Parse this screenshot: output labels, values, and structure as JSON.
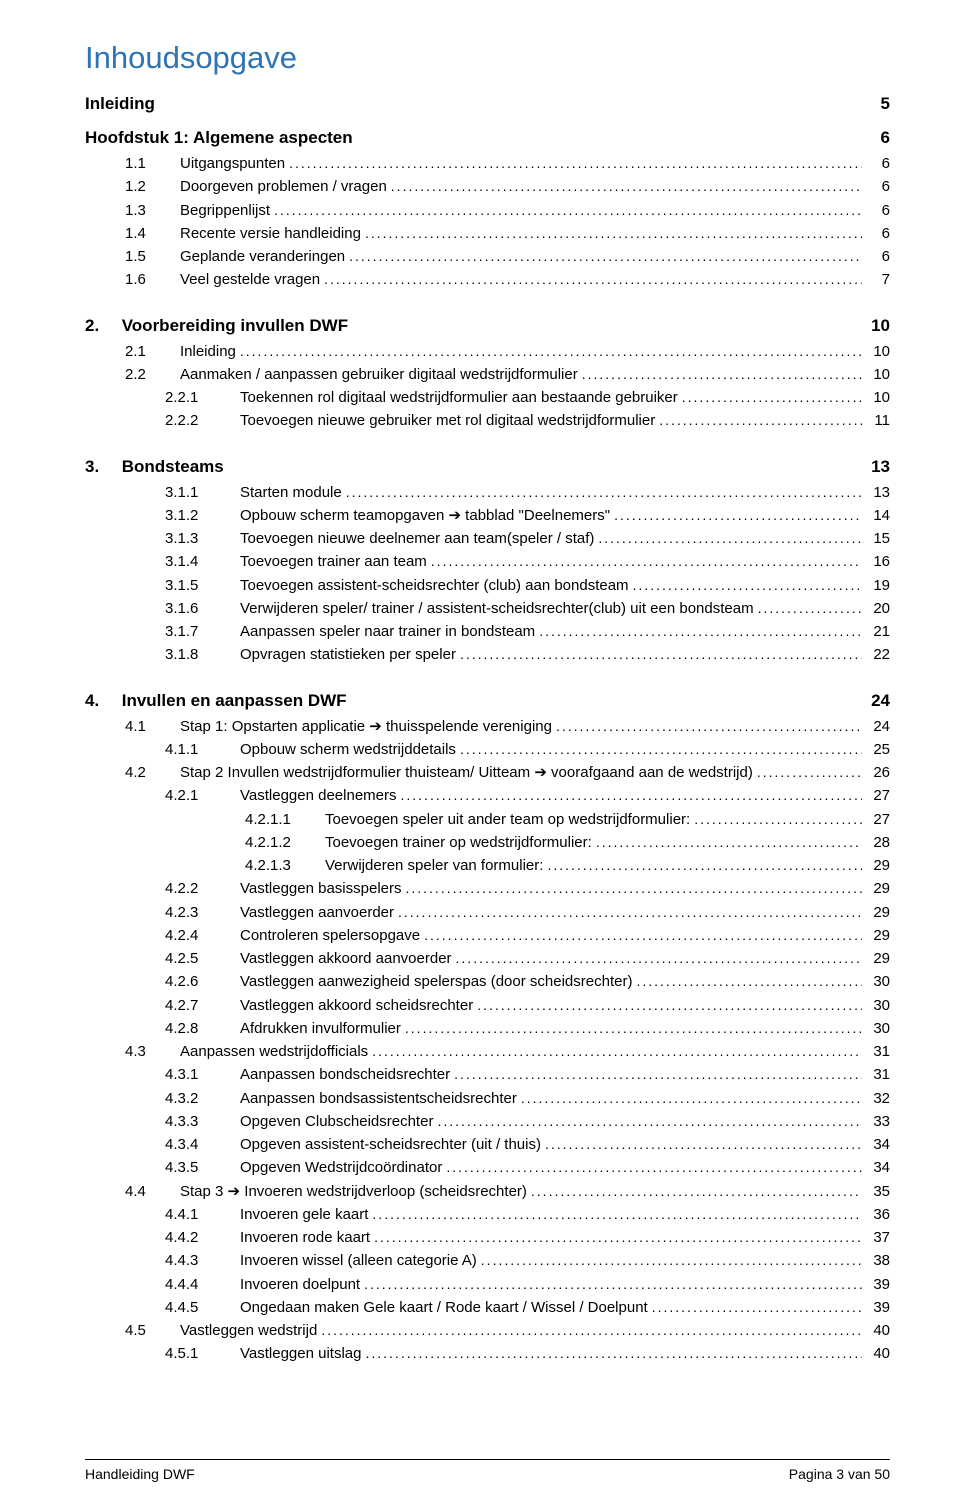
{
  "colors": {
    "title": "#2e74b5",
    "text": "#000000",
    "background": "#ffffff",
    "footer_border": "#000000"
  },
  "typography": {
    "title_fontsize": 31,
    "h1_fontsize": 17,
    "body_fontsize": 15,
    "footer_fontsize": 14,
    "font_family": "Arial"
  },
  "title": "Inhoudsopgave",
  "sections": [
    {
      "type": "h1",
      "label": "Inleiding",
      "page": "5"
    },
    {
      "type": "h1",
      "label": "Hoofdstuk 1: Algemene aspecten",
      "page": "6"
    },
    {
      "type": "entry",
      "indent": 1,
      "num": "1.1",
      "label": "Uitgangspunten",
      "page": "6"
    },
    {
      "type": "entry",
      "indent": 1,
      "num": "1.2",
      "label": "Doorgeven problemen / vragen",
      "page": "6"
    },
    {
      "type": "entry",
      "indent": 1,
      "num": "1.3",
      "label": "Begrippenlijst",
      "page": "6"
    },
    {
      "type": "entry",
      "indent": 1,
      "num": "1.4",
      "label": "Recente versie handleiding",
      "page": "6"
    },
    {
      "type": "entry",
      "indent": 1,
      "num": "1.5",
      "label": "Geplande veranderingen",
      "page": "6"
    },
    {
      "type": "entry",
      "indent": 1,
      "num": "1.6",
      "label": "Veel gestelde vragen",
      "page": "7"
    },
    {
      "type": "h1num",
      "num": "2.",
      "label": "Voorbereiding invullen DWF",
      "page": "10"
    },
    {
      "type": "entry",
      "indent": 1,
      "num": "2.1",
      "label": "Inleiding",
      "page": "10"
    },
    {
      "type": "entry",
      "indent": 1,
      "num": "2.2",
      "label": "Aanmaken / aanpassen gebruiker digitaal wedstrijdformulier",
      "page": "10"
    },
    {
      "type": "entry",
      "indent": 2,
      "num": "2.2.1",
      "label": "Toekennen rol digitaal wedstrijdformulier aan bestaande gebruiker",
      "page": "10"
    },
    {
      "type": "entry",
      "indent": 2,
      "num": "2.2.2",
      "label": "Toevoegen nieuwe gebruiker met rol digitaal wedstrijdformulier",
      "page": "11"
    },
    {
      "type": "h1num",
      "num": "3.",
      "label": "Bondsteams",
      "page": "13"
    },
    {
      "type": "entry",
      "indent": 2,
      "num": "3.1.1",
      "label": "Starten module",
      "page": "13"
    },
    {
      "type": "entry",
      "indent": 2,
      "num": "3.1.2",
      "label": "Opbouw scherm teamopgaven ➔ tabblad \"Deelnemers\"",
      "page": "14"
    },
    {
      "type": "entry",
      "indent": 2,
      "num": "3.1.3",
      "label": "Toevoegen nieuwe deelnemer aan team(speler / staf)",
      "page": "15"
    },
    {
      "type": "entry",
      "indent": 2,
      "num": "3.1.4",
      "label": "Toevoegen trainer aan team",
      "page": "16"
    },
    {
      "type": "entry",
      "indent": 2,
      "num": "3.1.5",
      "label": "Toevoegen assistent-scheidsrechter (club) aan bondsteam",
      "page": "19"
    },
    {
      "type": "entry",
      "indent": 2,
      "num": "3.1.6",
      "label": "Verwijderen speler/ trainer / assistent-scheidsrechter(club) uit een bondsteam",
      "page": "20"
    },
    {
      "type": "entry",
      "indent": 2,
      "num": "3.1.7",
      "label": "Aanpassen speler naar trainer in bondsteam",
      "page": "21"
    },
    {
      "type": "entry",
      "indent": 2,
      "num": "3.1.8",
      "label": "Opvragen statistieken per speler",
      "page": "22"
    },
    {
      "type": "h1num",
      "num": "4.",
      "label": "Invullen en aanpassen DWF",
      "page": "24"
    },
    {
      "type": "entry",
      "indent": 1,
      "num": "4.1",
      "label": "Stap 1: Opstarten applicatie ➔ thuisspelende vereniging",
      "page": "24"
    },
    {
      "type": "entry",
      "indent": 2,
      "num": "4.1.1",
      "label": "Opbouw scherm wedstrijddetails",
      "page": "25"
    },
    {
      "type": "entry",
      "indent": 1,
      "num": "4.2",
      "label": "Stap 2 Invullen wedstrijdformulier thuisteam/ Uitteam ➔ voorafgaand aan de wedstrijd)",
      "page": "26"
    },
    {
      "type": "entry",
      "indent": 2,
      "num": "4.2.1",
      "label": "Vastleggen deelnemers",
      "page": "27"
    },
    {
      "type": "entry",
      "indent": 3,
      "num": "4.2.1.1",
      "label": "Toevoegen speler uit ander team op wedstrijdformulier:",
      "page": "27"
    },
    {
      "type": "entry",
      "indent": 3,
      "num": "4.2.1.2",
      "label": "Toevoegen trainer op wedstrijdformulier:",
      "page": "28"
    },
    {
      "type": "entry",
      "indent": 3,
      "num": "4.2.1.3",
      "label": "Verwijderen speler van formulier:",
      "page": "29"
    },
    {
      "type": "entry",
      "indent": 2,
      "num": "4.2.2",
      "label": "Vastleggen basisspelers",
      "page": "29"
    },
    {
      "type": "entry",
      "indent": 2,
      "num": "4.2.3",
      "label": "Vastleggen aanvoerder",
      "page": "29"
    },
    {
      "type": "entry",
      "indent": 2,
      "num": "4.2.4",
      "label": "Controleren spelersopgave",
      "page": "29"
    },
    {
      "type": "entry",
      "indent": 2,
      "num": "4.2.5",
      "label": "Vastleggen akkoord aanvoerder",
      "page": "29"
    },
    {
      "type": "entry",
      "indent": 2,
      "num": "4.2.6",
      "label": "Vastleggen aanwezigheid spelerspas (door scheidsrechter)",
      "page": "30"
    },
    {
      "type": "entry",
      "indent": 2,
      "num": "4.2.7",
      "label": "Vastleggen akkoord scheidsrechter",
      "page": "30"
    },
    {
      "type": "entry",
      "indent": 2,
      "num": "4.2.8",
      "label": "Afdrukken invulformulier",
      "page": "30"
    },
    {
      "type": "entry",
      "indent": 1,
      "num": "4.3",
      "label": "Aanpassen wedstrijdofficials",
      "page": "31"
    },
    {
      "type": "entry",
      "indent": 2,
      "num": "4.3.1",
      "label": "Aanpassen bondscheidsrechter",
      "page": "31"
    },
    {
      "type": "entry",
      "indent": 2,
      "num": "4.3.2",
      "label": "Aanpassen bondsassistentscheidsrechter",
      "page": "32"
    },
    {
      "type": "entry",
      "indent": 2,
      "num": "4.3.3",
      "label": "Opgeven Clubscheidsrechter",
      "page": "33"
    },
    {
      "type": "entry",
      "indent": 2,
      "num": "4.3.4",
      "label": "Opgeven assistent-scheidsrechter (uit / thuis)",
      "page": "34"
    },
    {
      "type": "entry",
      "indent": 2,
      "num": "4.3.5",
      "label": "Opgeven Wedstrijdcoördinator",
      "page": "34"
    },
    {
      "type": "entry",
      "indent": 1,
      "num": "4.4",
      "label": "Stap 3 ➔ Invoeren wedstrijdverloop (scheidsrechter)",
      "page": "35"
    },
    {
      "type": "entry",
      "indent": 2,
      "num": "4.4.1",
      "label": "Invoeren gele kaart",
      "page": "36"
    },
    {
      "type": "entry",
      "indent": 2,
      "num": "4.4.2",
      "label": "Invoeren rode kaart",
      "page": "37"
    },
    {
      "type": "entry",
      "indent": 2,
      "num": "4.4.3",
      "label": "Invoeren wissel (alleen categorie A)",
      "page": "38"
    },
    {
      "type": "entry",
      "indent": 2,
      "num": "4.4.4",
      "label": "Invoeren doelpunt",
      "page": "39"
    },
    {
      "type": "entry",
      "indent": 2,
      "num": "4.4.5",
      "label": "Ongedaan maken Gele kaart / Rode kaart / Wissel / Doelpunt",
      "page": "39"
    },
    {
      "type": "entry",
      "indent": 1,
      "num": "4.5",
      "label": "Vastleggen wedstrijd",
      "page": "40"
    },
    {
      "type": "entry",
      "indent": 2,
      "num": "4.5.1",
      "label": "Vastleggen uitslag",
      "page": "40"
    }
  ],
  "footer": {
    "left": "Handleiding DWF",
    "right": "Pagina 3 van 50"
  }
}
